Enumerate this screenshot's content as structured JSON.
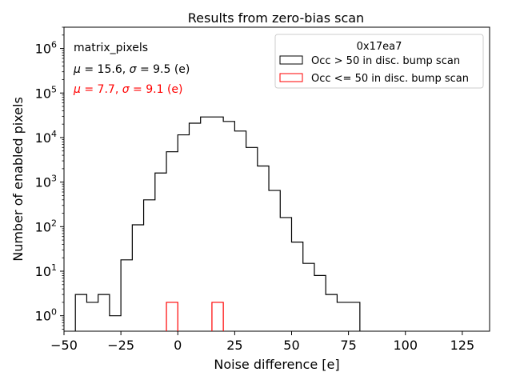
{
  "chart_data": {
    "type": "histogram",
    "title": "Results from zero-bias scan",
    "xlabel": "Noise difference [e]",
    "ylabel": "Number of enabled pixels",
    "xlim": [
      -50,
      137
    ],
    "ylim_log": [
      0.45,
      3000000
    ],
    "yscale": "log",
    "xticks": [
      -50,
      -25,
      0,
      25,
      50,
      75,
      100,
      125
    ],
    "xtick_labels": [
      "−50",
      "−25",
      "0",
      "25",
      "50",
      "75",
      "100",
      "125"
    ],
    "yticks": [
      {
        "value": 1,
        "base": "10",
        "exp": "0"
      },
      {
        "value": 10,
        "base": "10",
        "exp": "1"
      },
      {
        "value": 100,
        "base": "10",
        "exp": "2"
      },
      {
        "value": 1000,
        "base": "10",
        "exp": "3"
      },
      {
        "value": 10000,
        "base": "10",
        "exp": "4"
      },
      {
        "value": 100000,
        "base": "10",
        "exp": "5"
      },
      {
        "value": 1000000,
        "base": "10",
        "exp": "6"
      }
    ],
    "bin_width": 5,
    "annotations": {
      "label": "matrix_pixels",
      "stats_black": {
        "mu_label": "μ",
        "mu_value": " = 15.6, ",
        "sigma_label": "σ",
        "sigma_value": " = 9.5 (e)"
      },
      "stats_red": {
        "mu_label": "μ",
        "mu_value": " = 7.7, ",
        "sigma_label": "σ",
        "sigma_value": " = 9.1 (e)"
      }
    },
    "legend": {
      "title": "0x17ea7",
      "placement": "upper right"
    },
    "series": [
      {
        "name": "Occ > 50 in disc. bump scan",
        "color": "#000000",
        "bin_edges_start": -45,
        "counts": [
          3,
          2,
          3,
          1,
          18,
          110,
          400,
          1600,
          4800,
          11500,
          21000,
          29000,
          29000,
          23000,
          14000,
          6000,
          2300,
          650,
          160,
          45,
          15,
          8,
          3,
          2,
          2
        ]
      },
      {
        "name": "Occ <= 50 in disc. bump scan",
        "color": "#ff0000",
        "bins": [
          {
            "left": -5,
            "count": 2
          },
          {
            "left": 15,
            "count": 2
          }
        ]
      }
    ]
  }
}
